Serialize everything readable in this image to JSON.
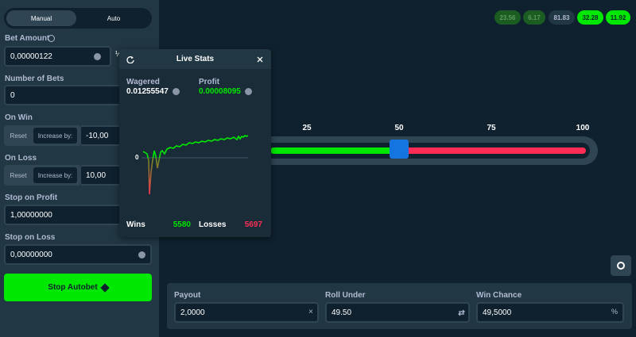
{
  "sidebar": {
    "tabs": [
      "Manual",
      "Auto"
    ],
    "bet_amount": {
      "label": "Bet Amount",
      "value": "0,00000122",
      "half": "½"
    },
    "number_of_bets": {
      "label": "Number of Bets",
      "value": "0"
    },
    "on_win": {
      "label": "On Win",
      "reset": "Reset",
      "increase": "Increase by:",
      "value": "-10,00"
    },
    "on_loss": {
      "label": "On Loss",
      "reset": "Reset",
      "increase": "Increase by:",
      "value": "10,00"
    },
    "stop_on_profit": {
      "label": "Stop on Profit",
      "value": "1,00000000"
    },
    "stop_on_loss": {
      "label": "Stop on Loss",
      "value": "0,00000000"
    },
    "button": "Stop Autobet"
  },
  "history": [
    "23.56",
    "6.17",
    "81.83",
    "32.28",
    "11.92"
  ],
  "slider": {
    "ticks": [
      "25",
      "50",
      "75",
      "100"
    ]
  },
  "live_stats": {
    "title": "Live Stats",
    "wagered_label": "Wagered",
    "wagered": "0.01255547",
    "profit_label": "Profit",
    "profit": "0.00008095",
    "zero": "0",
    "wins_label": "Wins",
    "wins": "5580",
    "losses_label": "Losses",
    "losses": "5697"
  },
  "fields": [
    {
      "label": "Payout",
      "value": "2,0000",
      "suffix": "×"
    },
    {
      "label": "Roll Under",
      "value": "49.50"
    },
    {
      "label": "Win Chance",
      "value": "49,5000",
      "suffix": "%"
    }
  ]
}
